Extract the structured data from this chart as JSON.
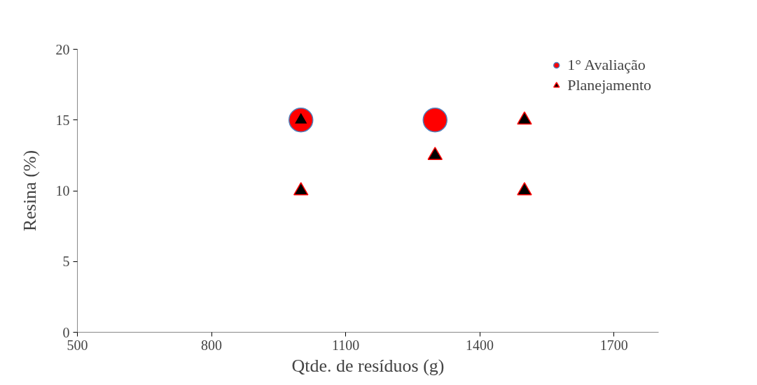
{
  "chart_data": {
    "type": "scatter",
    "xlabel": "Qtde. de resíduos (g)",
    "ylabel": "Resina (%)",
    "xlim": [
      500,
      1800
    ],
    "xticks": [
      500,
      800,
      1100,
      1400,
      1700
    ],
    "ylim": [
      0,
      20
    ],
    "yticks": [
      0,
      5,
      10,
      15,
      20
    ],
    "grid": false,
    "legend": "top right",
    "series": [
      {
        "name": "1° Avaliação",
        "color": "#ff0000",
        "marker": "circle",
        "x": [
          1000,
          1300
        ],
        "values": [
          15,
          15
        ]
      },
      {
        "name": "Planejamento",
        "color": "#000000",
        "marker": "triangle",
        "x": [
          1000,
          1000,
          1300,
          1500,
          1500
        ],
        "values": [
          15,
          10,
          12.5,
          15,
          10
        ]
      }
    ]
  }
}
